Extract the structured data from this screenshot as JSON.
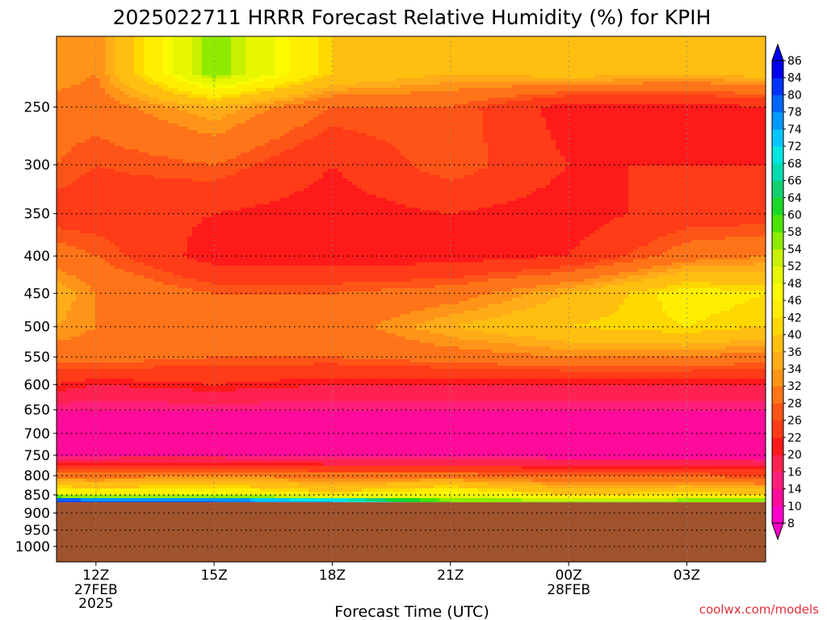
{
  "chart_data": {
    "type": "heatmap",
    "title": "2025022711 HRRR Forecast Relative Humidity (%) for KPIH",
    "xlabel": "Forecast Time (UTC)",
    "ylabel": "",
    "credit": "coolwx.com/models",
    "y_scale": "log-pressure",
    "ylim": [
      1050,
      200
    ],
    "y_ticks": [
      250,
      300,
      350,
      400,
      450,
      500,
      550,
      600,
      650,
      700,
      750,
      800,
      850,
      900,
      950,
      1000
    ],
    "x_ticks": [
      {
        "label": "12Z",
        "sub": [
          "27FEB",
          "2025"
        ]
      },
      {
        "label": "15Z",
        "sub": []
      },
      {
        "label": "18Z",
        "sub": []
      },
      {
        "label": "21Z",
        "sub": []
      },
      {
        "label": "00Z",
        "sub": [
          "28FEB"
        ]
      },
      {
        "label": "03Z",
        "sub": []
      }
    ],
    "grid": true,
    "colorbar_levels": [
      8,
      10,
      14,
      16,
      20,
      22,
      26,
      28,
      32,
      34,
      36,
      40,
      42,
      46,
      48,
      52,
      54,
      58,
      60,
      64,
      66,
      68,
      72,
      74,
      78,
      80,
      84,
      86
    ],
    "colorbar_colors": [
      "#ff00cc",
      "#ff0a9a",
      "#ff1f7a",
      "#ff2250",
      "#ff1a1a",
      "#ff3b18",
      "#ff5417",
      "#ff7418",
      "#ff9418",
      "#ffac18",
      "#ffbe10",
      "#ffd800",
      "#ffee00",
      "#fbfb00",
      "#e6f700",
      "#c8f000",
      "#8fec00",
      "#4ae400",
      "#1ad828",
      "#10d070",
      "#00dcb0",
      "#00e6e0",
      "#00c8ff",
      "#0099ff",
      "#0066ff",
      "#0033ff",
      "#0000f0"
    ],
    "colorbar_position": "right",
    "terrain_color": "#a0522d",
    "surface_pressure_hPa": 870,
    "profiles": [
      {
        "time": "11Z",
        "points": [
          [
            225,
            34
          ],
          [
            250,
            30
          ],
          [
            300,
            28
          ],
          [
            350,
            24
          ],
          [
            400,
            30
          ],
          [
            450,
            36
          ],
          [
            500,
            34
          ],
          [
            550,
            30
          ],
          [
            600,
            22
          ],
          [
            650,
            14
          ],
          [
            700,
            12
          ],
          [
            750,
            14
          ],
          [
            800,
            30
          ],
          [
            850,
            48
          ],
          [
            865,
            84
          ]
        ]
      },
      {
        "time": "12Z",
        "points": [
          [
            225,
            32
          ],
          [
            250,
            30
          ],
          [
            300,
            26
          ],
          [
            350,
            24
          ],
          [
            400,
            28
          ],
          [
            450,
            32
          ],
          [
            500,
            32
          ],
          [
            550,
            30
          ],
          [
            600,
            20
          ],
          [
            650,
            14
          ],
          [
            700,
            12
          ],
          [
            750,
            14
          ],
          [
            800,
            30
          ],
          [
            850,
            46
          ],
          [
            865,
            82
          ]
        ]
      },
      {
        "time": "15Z",
        "points": [
          [
            225,
            56
          ],
          [
            250,
            36
          ],
          [
            300,
            28
          ],
          [
            350,
            22
          ],
          [
            400,
            20
          ],
          [
            450,
            28
          ],
          [
            500,
            30
          ],
          [
            550,
            28
          ],
          [
            600,
            22
          ],
          [
            650,
            14
          ],
          [
            700,
            12
          ],
          [
            750,
            14
          ],
          [
            800,
            32
          ],
          [
            850,
            48
          ],
          [
            865,
            80
          ]
        ]
      },
      {
        "time": "18Z",
        "points": [
          [
            225,
            40
          ],
          [
            250,
            28
          ],
          [
            300,
            22
          ],
          [
            350,
            20
          ],
          [
            400,
            20
          ],
          [
            450,
            28
          ],
          [
            500,
            30
          ],
          [
            550,
            28
          ],
          [
            600,
            20
          ],
          [
            650,
            14
          ],
          [
            700,
            10
          ],
          [
            750,
            12
          ],
          [
            800,
            30
          ],
          [
            850,
            42
          ],
          [
            865,
            74
          ]
        ]
      },
      {
        "time": "21Z",
        "points": [
          [
            225,
            36
          ],
          [
            250,
            28
          ],
          [
            300,
            28
          ],
          [
            350,
            22
          ],
          [
            400,
            20
          ],
          [
            450,
            30
          ],
          [
            500,
            36
          ],
          [
            550,
            30
          ],
          [
            600,
            20
          ],
          [
            650,
            14
          ],
          [
            700,
            10
          ],
          [
            750,
            12
          ],
          [
            800,
            30
          ],
          [
            850,
            48
          ],
          [
            865,
            58
          ]
        ]
      },
      {
        "time": "00Z",
        "points": [
          [
            225,
            38
          ],
          [
            250,
            20
          ],
          [
            300,
            22
          ],
          [
            350,
            20
          ],
          [
            400,
            22
          ],
          [
            450,
            36
          ],
          [
            500,
            40
          ],
          [
            550,
            32
          ],
          [
            600,
            20
          ],
          [
            650,
            14
          ],
          [
            700,
            10
          ],
          [
            750,
            12
          ],
          [
            800,
            28
          ],
          [
            850,
            40
          ],
          [
            865,
            54
          ]
        ]
      },
      {
        "time": "03Z",
        "points": [
          [
            225,
            36
          ],
          [
            250,
            20
          ],
          [
            300,
            22
          ],
          [
            350,
            24
          ],
          [
            400,
            30
          ],
          [
            450,
            44
          ],
          [
            500,
            42
          ],
          [
            550,
            32
          ],
          [
            600,
            20
          ],
          [
            650,
            14
          ],
          [
            700,
            10
          ],
          [
            750,
            12
          ],
          [
            800,
            28
          ],
          [
            850,
            42
          ],
          [
            865,
            56
          ]
        ]
      },
      {
        "time": "05Z",
        "points": [
          [
            225,
            38
          ],
          [
            250,
            22
          ],
          [
            300,
            22
          ],
          [
            350,
            24
          ],
          [
            400,
            32
          ],
          [
            450,
            42
          ],
          [
            500,
            40
          ],
          [
            550,
            30
          ],
          [
            600,
            20
          ],
          [
            650,
            14
          ],
          [
            700,
            10
          ],
          [
            750,
            12
          ],
          [
            800,
            26
          ],
          [
            850,
            40
          ],
          [
            865,
            58
          ]
        ]
      }
    ]
  }
}
